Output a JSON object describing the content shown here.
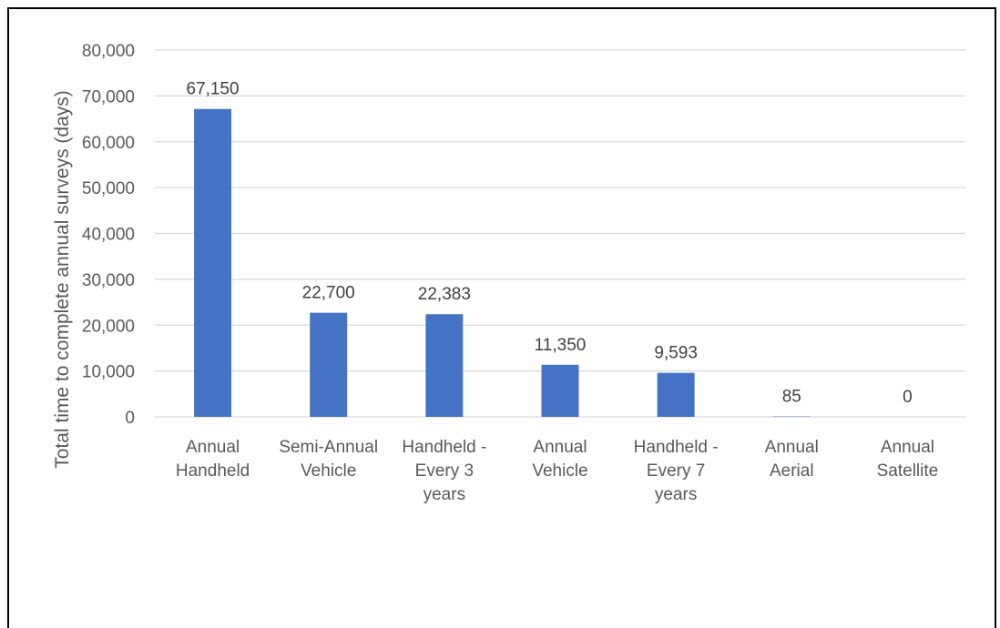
{
  "chart_data": {
    "type": "bar",
    "title": "",
    "xlabel": "",
    "ylabel": "Total time to complete annual  surveys (days)",
    "categories": [
      [
        "Annual",
        "Handheld"
      ],
      [
        "Semi-Annual",
        "Vehicle"
      ],
      [
        "Handheld -",
        "Every 3",
        "years"
      ],
      [
        "Annual",
        "Vehicle"
      ],
      [
        "Handheld -",
        "Every 7",
        "years"
      ],
      [
        "Annual",
        "Aerial"
      ],
      [
        "Annual",
        "Satellite"
      ]
    ],
    "values": [
      67150,
      22700,
      22383,
      11350,
      9593,
      85,
      0
    ],
    "data_labels": [
      "67,150",
      "22,700",
      "22,383",
      "11,350",
      "9,593",
      "85",
      "0"
    ],
    "ylim": [
      0,
      80000
    ],
    "yticks": [
      0,
      10000,
      20000,
      30000,
      40000,
      50000,
      60000,
      70000,
      80000
    ],
    "ytick_labels": [
      "0",
      "10,000",
      "20,000",
      "30,000",
      "40,000",
      "50,000",
      "60,000",
      "70,000",
      "80,000"
    ],
    "grid": true,
    "legend": "none",
    "bar_color": "#4472C4",
    "grid_color": "#D9D9D9"
  }
}
